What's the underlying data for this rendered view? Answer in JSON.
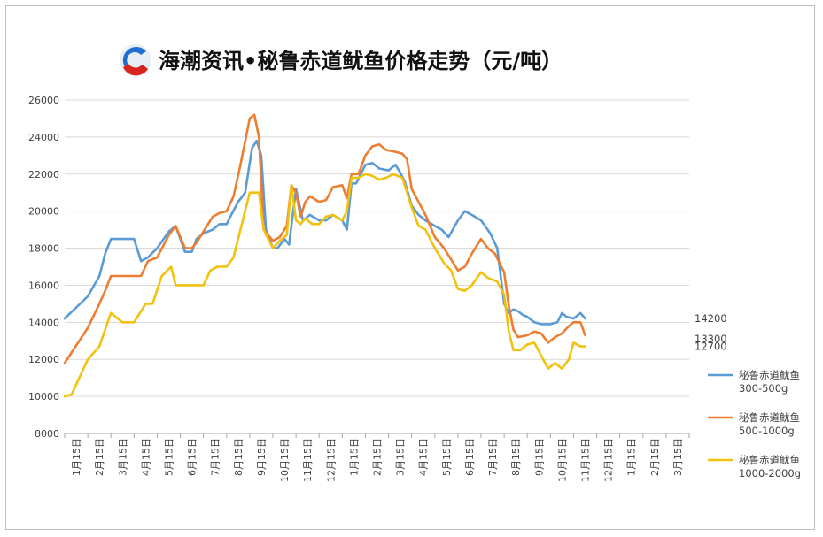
{
  "title": "海潮资讯•秘鲁赤道鱿鱼价格走势（元/吨）",
  "colors": {
    "s1": "#5b9bd5",
    "s2": "#ed7d31",
    "s3": "#f2c10c",
    "grid": "#d9d9d9",
    "axis": "#a6a6a6"
  },
  "chart_data": {
    "type": "line",
    "title": "海潮资讯•秘鲁赤道鱿鱼价格走势（元/吨）",
    "xlabel": "",
    "ylabel": "",
    "ylim": [
      8000,
      26000
    ],
    "yticks": [
      "26000",
      "24000",
      "22000",
      "20000",
      "18000",
      "16000",
      "14000",
      "12000",
      "10000",
      "8000"
    ],
    "xticks": [
      "1月15日",
      "2月15日",
      "3月15日",
      "4月15日",
      "5月15日",
      "6月15日",
      "7月15日",
      "8月15日",
      "9月15日",
      "10月15日",
      "11月15日",
      "12月15日",
      "1月15日",
      "2月15日",
      "3月15日",
      "4月15日",
      "5月15日",
      "6月15日",
      "7月15日",
      "8月15日",
      "9月15日",
      "10月15日",
      "11月15日",
      "12月15日",
      "1月15日",
      "2月15日",
      "3月15日"
    ],
    "grid": true,
    "legend_position": "right",
    "end_labels": [
      "14200",
      "13300",
      "12700"
    ],
    "series": [
      {
        "name": "秘鲁赤道鱿鱼 300-500g",
        "color": "#5b9bd5",
        "values": [
          [
            0,
            14200
          ],
          [
            1,
            15400
          ],
          [
            1.5,
            16500
          ],
          [
            1.75,
            17700
          ],
          [
            2,
            18500
          ],
          [
            3,
            18500
          ],
          [
            3.3,
            17300
          ],
          [
            3.6,
            17500
          ],
          [
            4,
            18000
          ],
          [
            4.5,
            18900
          ],
          [
            4.8,
            19200
          ],
          [
            5.2,
            17800
          ],
          [
            5.5,
            17800
          ],
          [
            5.7,
            18500
          ],
          [
            6,
            18800
          ],
          [
            6.4,
            19000
          ],
          [
            6.7,
            19300
          ],
          [
            7,
            19300
          ],
          [
            7.2,
            19800
          ],
          [
            7.5,
            20500
          ],
          [
            7.8,
            21000
          ],
          [
            8.1,
            23400
          ],
          [
            8.3,
            23800
          ],
          [
            8.5,
            23000
          ],
          [
            8.7,
            19000
          ],
          [
            9,
            18000
          ],
          [
            9.2,
            18000
          ],
          [
            9.5,
            18500
          ],
          [
            9.7,
            18200
          ],
          [
            10,
            21200
          ],
          [
            10.3,
            19500
          ],
          [
            10.6,
            19800
          ],
          [
            11,
            19500
          ],
          [
            11.3,
            19500
          ],
          [
            11.6,
            19800
          ],
          [
            12,
            19500
          ],
          [
            12.2,
            19000
          ],
          [
            12.4,
            21500
          ],
          [
            12.6,
            21500
          ],
          [
            13,
            22500
          ],
          [
            13.3,
            22600
          ],
          [
            13.6,
            22300
          ],
          [
            14,
            22200
          ],
          [
            14.3,
            22500
          ],
          [
            14.5,
            22100
          ],
          [
            14.7,
            21600
          ],
          [
            15,
            20300
          ],
          [
            15.3,
            19800
          ],
          [
            15.6,
            19500
          ],
          [
            16,
            19200
          ],
          [
            16.3,
            19000
          ],
          [
            16.6,
            18600
          ],
          [
            17,
            19500
          ],
          [
            17.3,
            20000
          ],
          [
            17.6,
            19800
          ],
          [
            18,
            19500
          ],
          [
            18.4,
            18800
          ],
          [
            18.7,
            18000
          ],
          [
            19,
            15000
          ],
          [
            19.2,
            14500
          ],
          [
            19.4,
            14700
          ],
          [
            19.6,
            14600
          ],
          [
            19.8,
            14400
          ],
          [
            20,
            14300
          ],
          [
            20.3,
            14000
          ],
          [
            20.6,
            13900
          ],
          [
            21,
            13900
          ],
          [
            21.3,
            14000
          ],
          [
            21.5,
            14500
          ],
          [
            21.7,
            14300
          ],
          [
            22,
            14200
          ],
          [
            22.3,
            14500
          ],
          [
            22.5,
            14200
          ]
        ]
      },
      {
        "name": "秘鲁赤道鱿鱼 500-1000g",
        "color": "#ed7d31",
        "values": [
          [
            0,
            11800
          ],
          [
            1,
            13700
          ],
          [
            1.5,
            15000
          ],
          [
            1.75,
            15700
          ],
          [
            2,
            16500
          ],
          [
            3,
            16500
          ],
          [
            3.3,
            16500
          ],
          [
            3.6,
            17300
          ],
          [
            4,
            17500
          ],
          [
            4.5,
            18700
          ],
          [
            4.8,
            19200
          ],
          [
            5.2,
            18000
          ],
          [
            5.5,
            18000
          ],
          [
            5.7,
            18300
          ],
          [
            6,
            18900
          ],
          [
            6.4,
            19700
          ],
          [
            6.7,
            19900
          ],
          [
            7,
            20000
          ],
          [
            7.3,
            20800
          ],
          [
            7.6,
            22500
          ],
          [
            8,
            25000
          ],
          [
            8.2,
            25200
          ],
          [
            8.4,
            24000
          ],
          [
            8.6,
            19000
          ],
          [
            9,
            18400
          ],
          [
            9.3,
            18600
          ],
          [
            9.6,
            19200
          ],
          [
            9.8,
            21400
          ],
          [
            10,
            21000
          ],
          [
            10.2,
            19700
          ],
          [
            10.4,
            20500
          ],
          [
            10.6,
            20800
          ],
          [
            11,
            20500
          ],
          [
            11.3,
            20600
          ],
          [
            11.6,
            21300
          ],
          [
            12,
            21400
          ],
          [
            12.2,
            20700
          ],
          [
            12.4,
            22000
          ],
          [
            12.7,
            22000
          ],
          [
            13,
            23000
          ],
          [
            13.3,
            23500
          ],
          [
            13.6,
            23600
          ],
          [
            13.9,
            23300
          ],
          [
            14.3,
            23200
          ],
          [
            14.6,
            23100
          ],
          [
            14.8,
            22800
          ],
          [
            15,
            21200
          ],
          [
            15.3,
            20500
          ],
          [
            15.6,
            19800
          ],
          [
            16,
            18600
          ],
          [
            16.4,
            18000
          ],
          [
            16.7,
            17400
          ],
          [
            17,
            16800
          ],
          [
            17.3,
            17000
          ],
          [
            17.6,
            17700
          ],
          [
            18,
            18500
          ],
          [
            18.3,
            18000
          ],
          [
            18.6,
            17700
          ],
          [
            19,
            16700
          ],
          [
            19.2,
            14900
          ],
          [
            19.4,
            13600
          ],
          [
            19.6,
            13200
          ],
          [
            20,
            13300
          ],
          [
            20.3,
            13500
          ],
          [
            20.6,
            13400
          ],
          [
            20.9,
            12900
          ],
          [
            21.2,
            13200
          ],
          [
            21.5,
            13400
          ],
          [
            21.8,
            13800
          ],
          [
            22,
            14000
          ],
          [
            22.3,
            14000
          ],
          [
            22.5,
            13300
          ]
        ]
      },
      {
        "name": "秘鲁赤道鱿鱼 1000-2000g",
        "color": "#f2c10c",
        "values": [
          [
            0,
            10000
          ],
          [
            0.3,
            10100
          ],
          [
            1,
            12000
          ],
          [
            1.5,
            12700
          ],
          [
            1.8,
            13800
          ],
          [
            2,
            14500
          ],
          [
            2.5,
            14000
          ],
          [
            3,
            14000
          ],
          [
            3.5,
            15000
          ],
          [
            3.8,
            15000
          ],
          [
            4.2,
            16500
          ],
          [
            4.6,
            17000
          ],
          [
            4.8,
            16000
          ],
          [
            5.2,
            16000
          ],
          [
            5.6,
            16000
          ],
          [
            6,
            16000
          ],
          [
            6.3,
            16800
          ],
          [
            6.6,
            17000
          ],
          [
            7,
            17000
          ],
          [
            7.3,
            17500
          ],
          [
            7.6,
            19000
          ],
          [
            8,
            21000
          ],
          [
            8.4,
            21000
          ],
          [
            8.6,
            19000
          ],
          [
            9,
            18000
          ],
          [
            9.3,
            18400
          ],
          [
            9.6,
            18700
          ],
          [
            9.8,
            21400
          ],
          [
            10,
            19500
          ],
          [
            10.2,
            19300
          ],
          [
            10.4,
            19600
          ],
          [
            10.7,
            19300
          ],
          [
            11,
            19300
          ],
          [
            11.3,
            19700
          ],
          [
            11.6,
            19800
          ],
          [
            12,
            19500
          ],
          [
            12.2,
            20000
          ],
          [
            12.4,
            21800
          ],
          [
            12.7,
            21800
          ],
          [
            13,
            22000
          ],
          [
            13.3,
            21900
          ],
          [
            13.6,
            21700
          ],
          [
            13.9,
            21800
          ],
          [
            14.2,
            22000
          ],
          [
            14.6,
            21800
          ],
          [
            15,
            20200
          ],
          [
            15.3,
            19200
          ],
          [
            15.6,
            19000
          ],
          [
            16,
            18000
          ],
          [
            16.4,
            17200
          ],
          [
            16.7,
            16800
          ],
          [
            17,
            15800
          ],
          [
            17.3,
            15700
          ],
          [
            17.6,
            16000
          ],
          [
            18,
            16700
          ],
          [
            18.3,
            16400
          ],
          [
            18.7,
            16200
          ],
          [
            19,
            15500
          ],
          [
            19.2,
            13500
          ],
          [
            19.4,
            12500
          ],
          [
            19.7,
            12500
          ],
          [
            20,
            12800
          ],
          [
            20.3,
            12900
          ],
          [
            20.6,
            12200
          ],
          [
            20.9,
            11500
          ],
          [
            21.2,
            11800
          ],
          [
            21.5,
            11500
          ],
          [
            21.8,
            12000
          ],
          [
            22,
            12900
          ],
          [
            22.3,
            12700
          ],
          [
            22.5,
            12700
          ]
        ]
      }
    ]
  },
  "legend": [
    {
      "line1": "秘鲁赤道鱿鱼",
      "line2": "300-500g",
      "color": "#5b9bd5"
    },
    {
      "line1": "秘鲁赤道鱿鱼",
      "line2": "500-1000g",
      "color": "#ed7d31"
    },
    {
      "line1": "秘鲁赤道鱿鱼",
      "line2": "1000-2000g",
      "color": "#f2c10c"
    }
  ]
}
